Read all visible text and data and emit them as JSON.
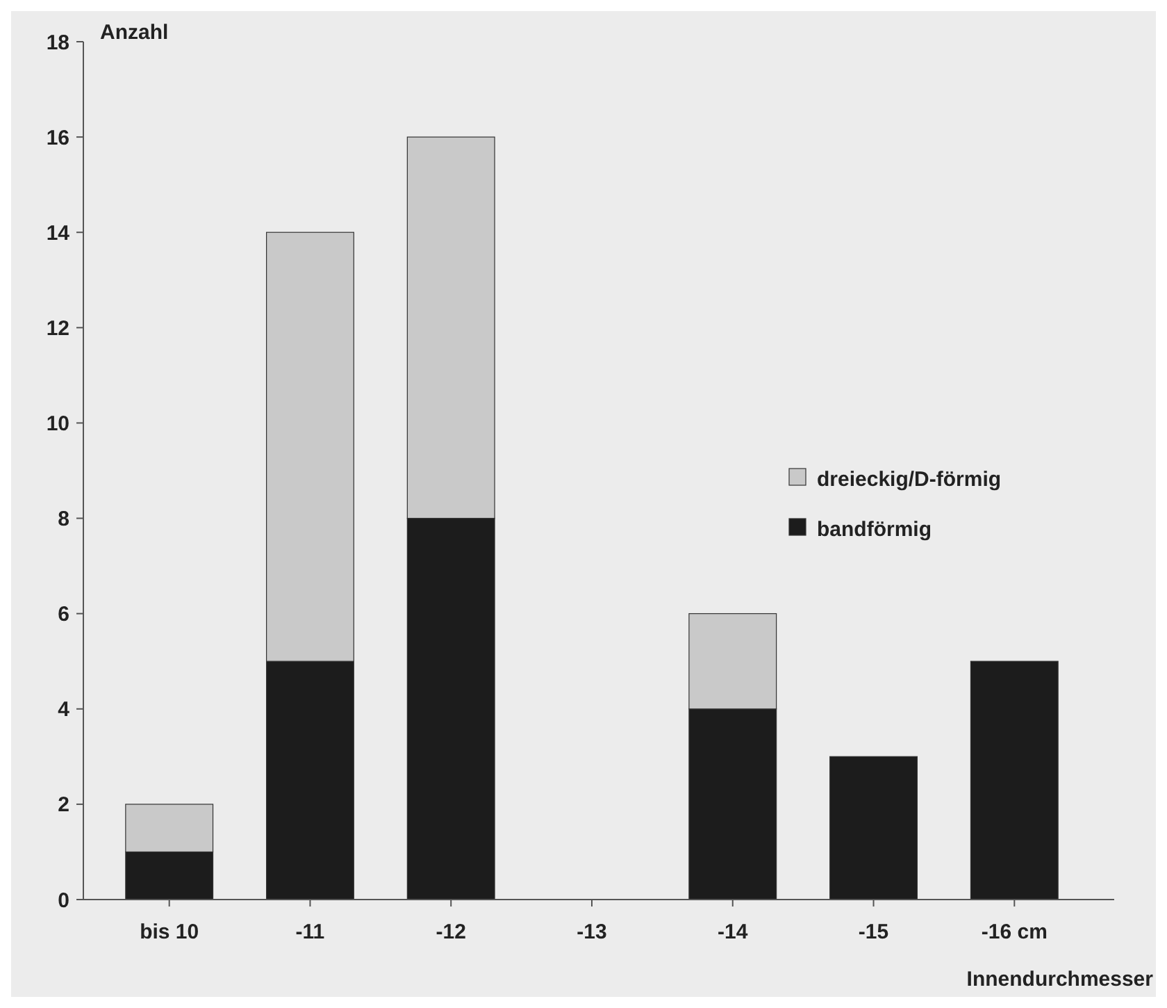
{
  "chart_data": {
    "type": "bar",
    "stacked": true,
    "ylabel": "Anzahl",
    "xlabel": "Innendurchmesser",
    "categories": [
      "bis 10",
      "-11",
      "-12",
      "-13",
      "-14",
      "-15",
      "-16 cm"
    ],
    "series": [
      {
        "name": "bandförmig",
        "color": "#1c1c1c",
        "values": [
          1,
          5,
          8,
          0,
          4,
          3,
          5
        ]
      },
      {
        "name": "dreieckig/D-förmig",
        "color": "#c9c9c9",
        "values": [
          1,
          9,
          8,
          0,
          2,
          0,
          0
        ]
      }
    ],
    "ylim": [
      0,
      18
    ],
    "yticks": [
      0,
      2,
      4,
      6,
      8,
      10,
      12,
      14,
      16,
      18
    ],
    "grid": false,
    "legend": "right"
  }
}
